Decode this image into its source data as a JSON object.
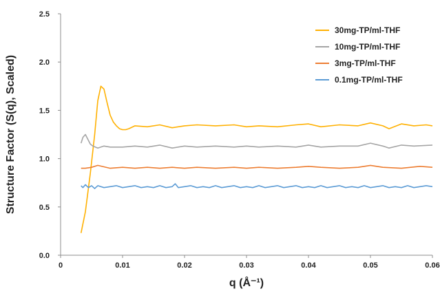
{
  "chart_data": {
    "type": "line",
    "xlabel": "q (Å⁻¹)",
    "ylabel": "Structure Factor (S(q), Scaled)",
    "xlim": [
      0,
      0.06
    ],
    "ylim": [
      0,
      2.5
    ],
    "x_ticks": [
      "0",
      "0.01",
      "0.02",
      "0.03",
      "0.04",
      "0.05",
      "0.06"
    ],
    "y_ticks": [
      "0.0",
      "0.5",
      "1.0",
      "1.5",
      "2.0",
      "2.5"
    ],
    "grid": false,
    "legend_position": "top-right",
    "series": [
      {
        "name": "30mg-TP/ml-THF",
        "color": "#FFB000",
        "x": [
          0.0033,
          0.004,
          0.0048,
          0.0055,
          0.006,
          0.0065,
          0.007,
          0.0075,
          0.008,
          0.0085,
          0.009,
          0.0095,
          0.01,
          0.0105,
          0.011,
          0.012,
          0.014,
          0.016,
          0.018,
          0.02,
          0.022,
          0.025,
          0.028,
          0.03,
          0.032,
          0.035,
          0.038,
          0.04,
          0.042,
          0.045,
          0.048,
          0.05,
          0.052,
          0.053,
          0.055,
          0.057,
          0.059,
          0.06
        ],
        "y": [
          0.23,
          0.45,
          0.85,
          1.25,
          1.6,
          1.75,
          1.72,
          1.58,
          1.45,
          1.38,
          1.34,
          1.31,
          1.3,
          1.3,
          1.31,
          1.34,
          1.33,
          1.35,
          1.32,
          1.34,
          1.35,
          1.34,
          1.35,
          1.33,
          1.34,
          1.33,
          1.35,
          1.36,
          1.33,
          1.35,
          1.34,
          1.37,
          1.34,
          1.31,
          1.36,
          1.34,
          1.35,
          1.34
        ]
      },
      {
        "name": "10mg-TP/ml-THF",
        "color": "#A5A5A5",
        "x": [
          0.0033,
          0.0036,
          0.004,
          0.0044,
          0.0048,
          0.0052,
          0.0056,
          0.006,
          0.007,
          0.008,
          0.01,
          0.012,
          0.014,
          0.016,
          0.018,
          0.02,
          0.022,
          0.025,
          0.028,
          0.03,
          0.032,
          0.035,
          0.038,
          0.04,
          0.042,
          0.045,
          0.048,
          0.05,
          0.052,
          0.053,
          0.055,
          0.057,
          0.06
        ],
        "y": [
          1.16,
          1.22,
          1.25,
          1.2,
          1.15,
          1.13,
          1.12,
          1.11,
          1.13,
          1.12,
          1.12,
          1.13,
          1.12,
          1.14,
          1.11,
          1.13,
          1.12,
          1.13,
          1.12,
          1.13,
          1.12,
          1.13,
          1.12,
          1.14,
          1.12,
          1.13,
          1.13,
          1.16,
          1.13,
          1.11,
          1.14,
          1.13,
          1.14
        ]
      },
      {
        "name": "3mg-TP/ml-THF",
        "color": "#ED7D31",
        "x": [
          0.0033,
          0.004,
          0.005,
          0.006,
          0.008,
          0.01,
          0.012,
          0.014,
          0.016,
          0.018,
          0.02,
          0.022,
          0.025,
          0.028,
          0.03,
          0.032,
          0.035,
          0.038,
          0.04,
          0.042,
          0.045,
          0.048,
          0.05,
          0.052,
          0.055,
          0.058,
          0.06
        ],
        "y": [
          0.9,
          0.9,
          0.91,
          0.93,
          0.9,
          0.91,
          0.9,
          0.91,
          0.9,
          0.91,
          0.9,
          0.91,
          0.9,
          0.91,
          0.9,
          0.91,
          0.9,
          0.91,
          0.92,
          0.91,
          0.9,
          0.91,
          0.93,
          0.91,
          0.9,
          0.92,
          0.91
        ]
      },
      {
        "name": "0.1mg-TP/ml-THF",
        "color": "#5B9BD5",
        "x": [
          0.0033,
          0.0036,
          0.004,
          0.0045,
          0.005,
          0.0055,
          0.006,
          0.007,
          0.008,
          0.009,
          0.01,
          0.011,
          0.012,
          0.013,
          0.014,
          0.015,
          0.016,
          0.017,
          0.018,
          0.0185,
          0.019,
          0.02,
          0.021,
          0.022,
          0.023,
          0.024,
          0.025,
          0.026,
          0.027,
          0.028,
          0.029,
          0.03,
          0.031,
          0.032,
          0.033,
          0.034,
          0.035,
          0.036,
          0.037,
          0.038,
          0.039,
          0.04,
          0.041,
          0.042,
          0.043,
          0.044,
          0.045,
          0.046,
          0.047,
          0.048,
          0.049,
          0.05,
          0.051,
          0.052,
          0.053,
          0.054,
          0.055,
          0.056,
          0.057,
          0.058,
          0.059,
          0.06
        ],
        "y": [
          0.72,
          0.7,
          0.73,
          0.7,
          0.72,
          0.69,
          0.72,
          0.7,
          0.71,
          0.72,
          0.7,
          0.71,
          0.72,
          0.7,
          0.71,
          0.7,
          0.72,
          0.7,
          0.71,
          0.74,
          0.7,
          0.71,
          0.72,
          0.7,
          0.71,
          0.7,
          0.72,
          0.7,
          0.71,
          0.72,
          0.7,
          0.71,
          0.7,
          0.72,
          0.7,
          0.71,
          0.72,
          0.7,
          0.71,
          0.72,
          0.7,
          0.71,
          0.7,
          0.72,
          0.7,
          0.71,
          0.72,
          0.7,
          0.71,
          0.7,
          0.72,
          0.7,
          0.71,
          0.72,
          0.7,
          0.71,
          0.7,
          0.72,
          0.7,
          0.71,
          0.72,
          0.71
        ]
      }
    ]
  }
}
